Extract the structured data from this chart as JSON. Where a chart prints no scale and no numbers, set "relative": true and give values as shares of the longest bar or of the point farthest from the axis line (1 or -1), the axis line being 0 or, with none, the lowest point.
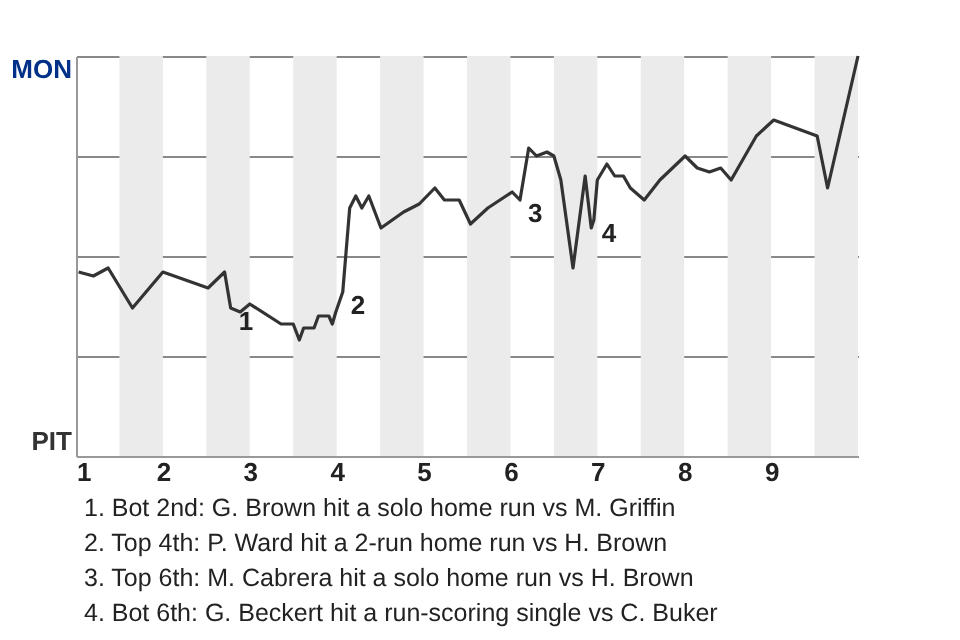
{
  "chart_data": {
    "type": "line",
    "relative": true,
    "x": [
      1.03,
      1.2,
      1.37,
      1.65,
      2.0,
      2.52,
      2.71,
      2.78,
      2.89,
      3.0,
      3.36,
      3.5,
      3.57,
      3.62,
      3.74,
      3.79,
      3.91,
      3.95,
      3.99,
      4.07,
      4.15,
      4.22,
      4.29,
      4.37,
      4.51,
      4.77,
      4.95,
      5.13,
      5.24,
      5.41,
      5.54,
      5.74,
      6.02,
      6.11,
      6.21,
      6.3,
      6.42,
      6.5,
      6.58,
      6.72,
      6.86,
      6.93,
      6.96,
      7.0,
      7.11,
      7.2,
      7.3,
      7.38,
      7.54,
      7.72,
      8.01,
      8.15,
      8.29,
      8.42,
      8.54,
      8.83,
      9.03,
      9.53,
      9.65,
      10
    ],
    "series": [
      {
        "color": "#333333",
        "values": [
          0.46,
          0.45,
          0.47,
          0.37,
          0.46,
          0.42,
          0.46,
          0.37,
          0.36,
          0.38,
          0.33,
          0.33,
          0.29,
          0.32,
          0.32,
          0.35,
          0.35,
          0.33,
          0.36,
          0.41,
          0.62,
          0.65,
          0.62,
          0.65,
          0.57,
          0.61,
          0.63,
          0.67,
          0.64,
          0.64,
          0.58,
          0.62,
          0.66,
          0.64,
          0.77,
          0.75,
          0.76,
          0.75,
          0.69,
          0.47,
          0.7,
          0.57,
          0.59,
          0.69,
          0.73,
          0.7,
          0.7,
          0.67,
          0.64,
          0.69,
          0.75,
          0.72,
          0.71,
          0.72,
          0.69,
          0.8,
          0.84,
          0.8,
          0.67,
          1.0
        ]
      }
    ],
    "xlim": [
      1,
      10
    ],
    "xticks": [
      1,
      2,
      3,
      4,
      5,
      6,
      7,
      8,
      9
    ],
    "grid": "y",
    "line_style": "solid",
    "bands": [
      {
        "axis": "x",
        "from": 1.5,
        "to": 2,
        "color": "#ebebeb"
      },
      {
        "axis": "x",
        "from": 2.5,
        "to": 3,
        "color": "#ebebeb"
      },
      {
        "axis": "x",
        "from": 3.5,
        "to": 4,
        "color": "#ebebeb"
      },
      {
        "axis": "x",
        "from": 4.5,
        "to": 5,
        "color": "#ebebeb"
      },
      {
        "axis": "x",
        "from": 5.5,
        "to": 6,
        "color": "#ebebeb"
      },
      {
        "axis": "x",
        "from": 6.5,
        "to": 7,
        "color": "#ebebeb"
      },
      {
        "axis": "x",
        "from": 7.5,
        "to": 8,
        "color": "#ebebeb"
      },
      {
        "axis": "x",
        "from": 8.5,
        "to": 9,
        "color": "#ebebeb"
      },
      {
        "axis": "x",
        "from": 9.5,
        "to": 10,
        "color": "#ebebeb"
      }
    ],
    "annotations": [
      "MON",
      "PIT",
      {
        "text": "1",
        "x": 2.78,
        "y": 0.37
      },
      {
        "text": "2",
        "x": 4.07,
        "y": 0.41
      },
      {
        "text": "3",
        "x": 6.11,
        "y": 0.64
      },
      {
        "text": "4",
        "x": 6.96,
        "y": 0.59
      },
      "1. Bot 2nd: G. Brown hit a solo home run vs M. Griffin",
      "2. Top 4th: P. Ward hit a 2-run home run vs H. Brown",
      "3. Top 6th: M. Cabrera hit a solo home run vs H. Brown",
      "4. Bot 6th: G. Beckert hit a run-scoring single vs C. Buker"
    ]
  }
}
